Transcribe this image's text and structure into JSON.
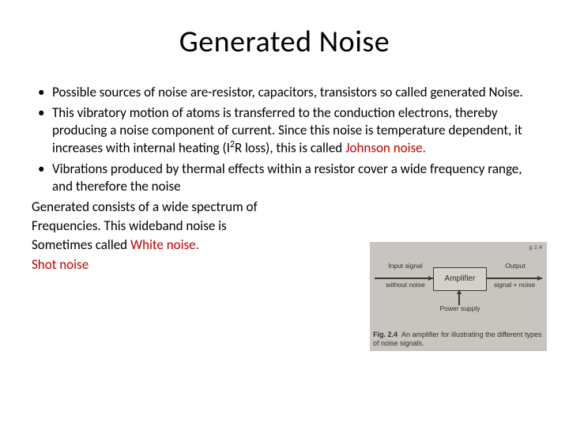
{
  "title": "Generated Noise",
  "bullets": [
    "Possible sources of noise are-resistor, capacitors, transistors so called generated Noise.",
    "This vibratory motion of atoms is transferred to the conduction electrons, thereby producing a noise component of current. Since this noise is temperature dependent, it increases with internal heating (I",
    "Vibrations produced by thermal effects within a resistor cover a wide frequency range, and therefore the noise"
  ],
  "bullet2_tail": "R loss), this is called ",
  "johnson": "Johnson  noise.",
  "wrap_lines": [
    "Generated consists of a wide spectrum of",
    "Frequencies. This wideband noise is",
    "Sometimes called "
  ],
  "white_noise": "White noise.",
  "shot_noise": "Shot noise",
  "figure": {
    "top_fragment": "g 2.4",
    "amp_label": "Amplifier",
    "input_top": "Input signal",
    "input_bottom": "without noise",
    "output_top": "Output",
    "output_bottom": "signal + noise",
    "power": "Power supply",
    "caption_bold": "Fig. 2.4",
    "caption_text": "An amplifier for illustrating the different types of noise signals.",
    "colors": {
      "panel_bg": "#c8c4c0",
      "box_border": "#403830",
      "box_fill": "#d4d0cc",
      "text": "#383028"
    }
  },
  "colors": {
    "slide_bg": "#ffffff",
    "body_text": "#000000",
    "highlight": "#c00000"
  }
}
